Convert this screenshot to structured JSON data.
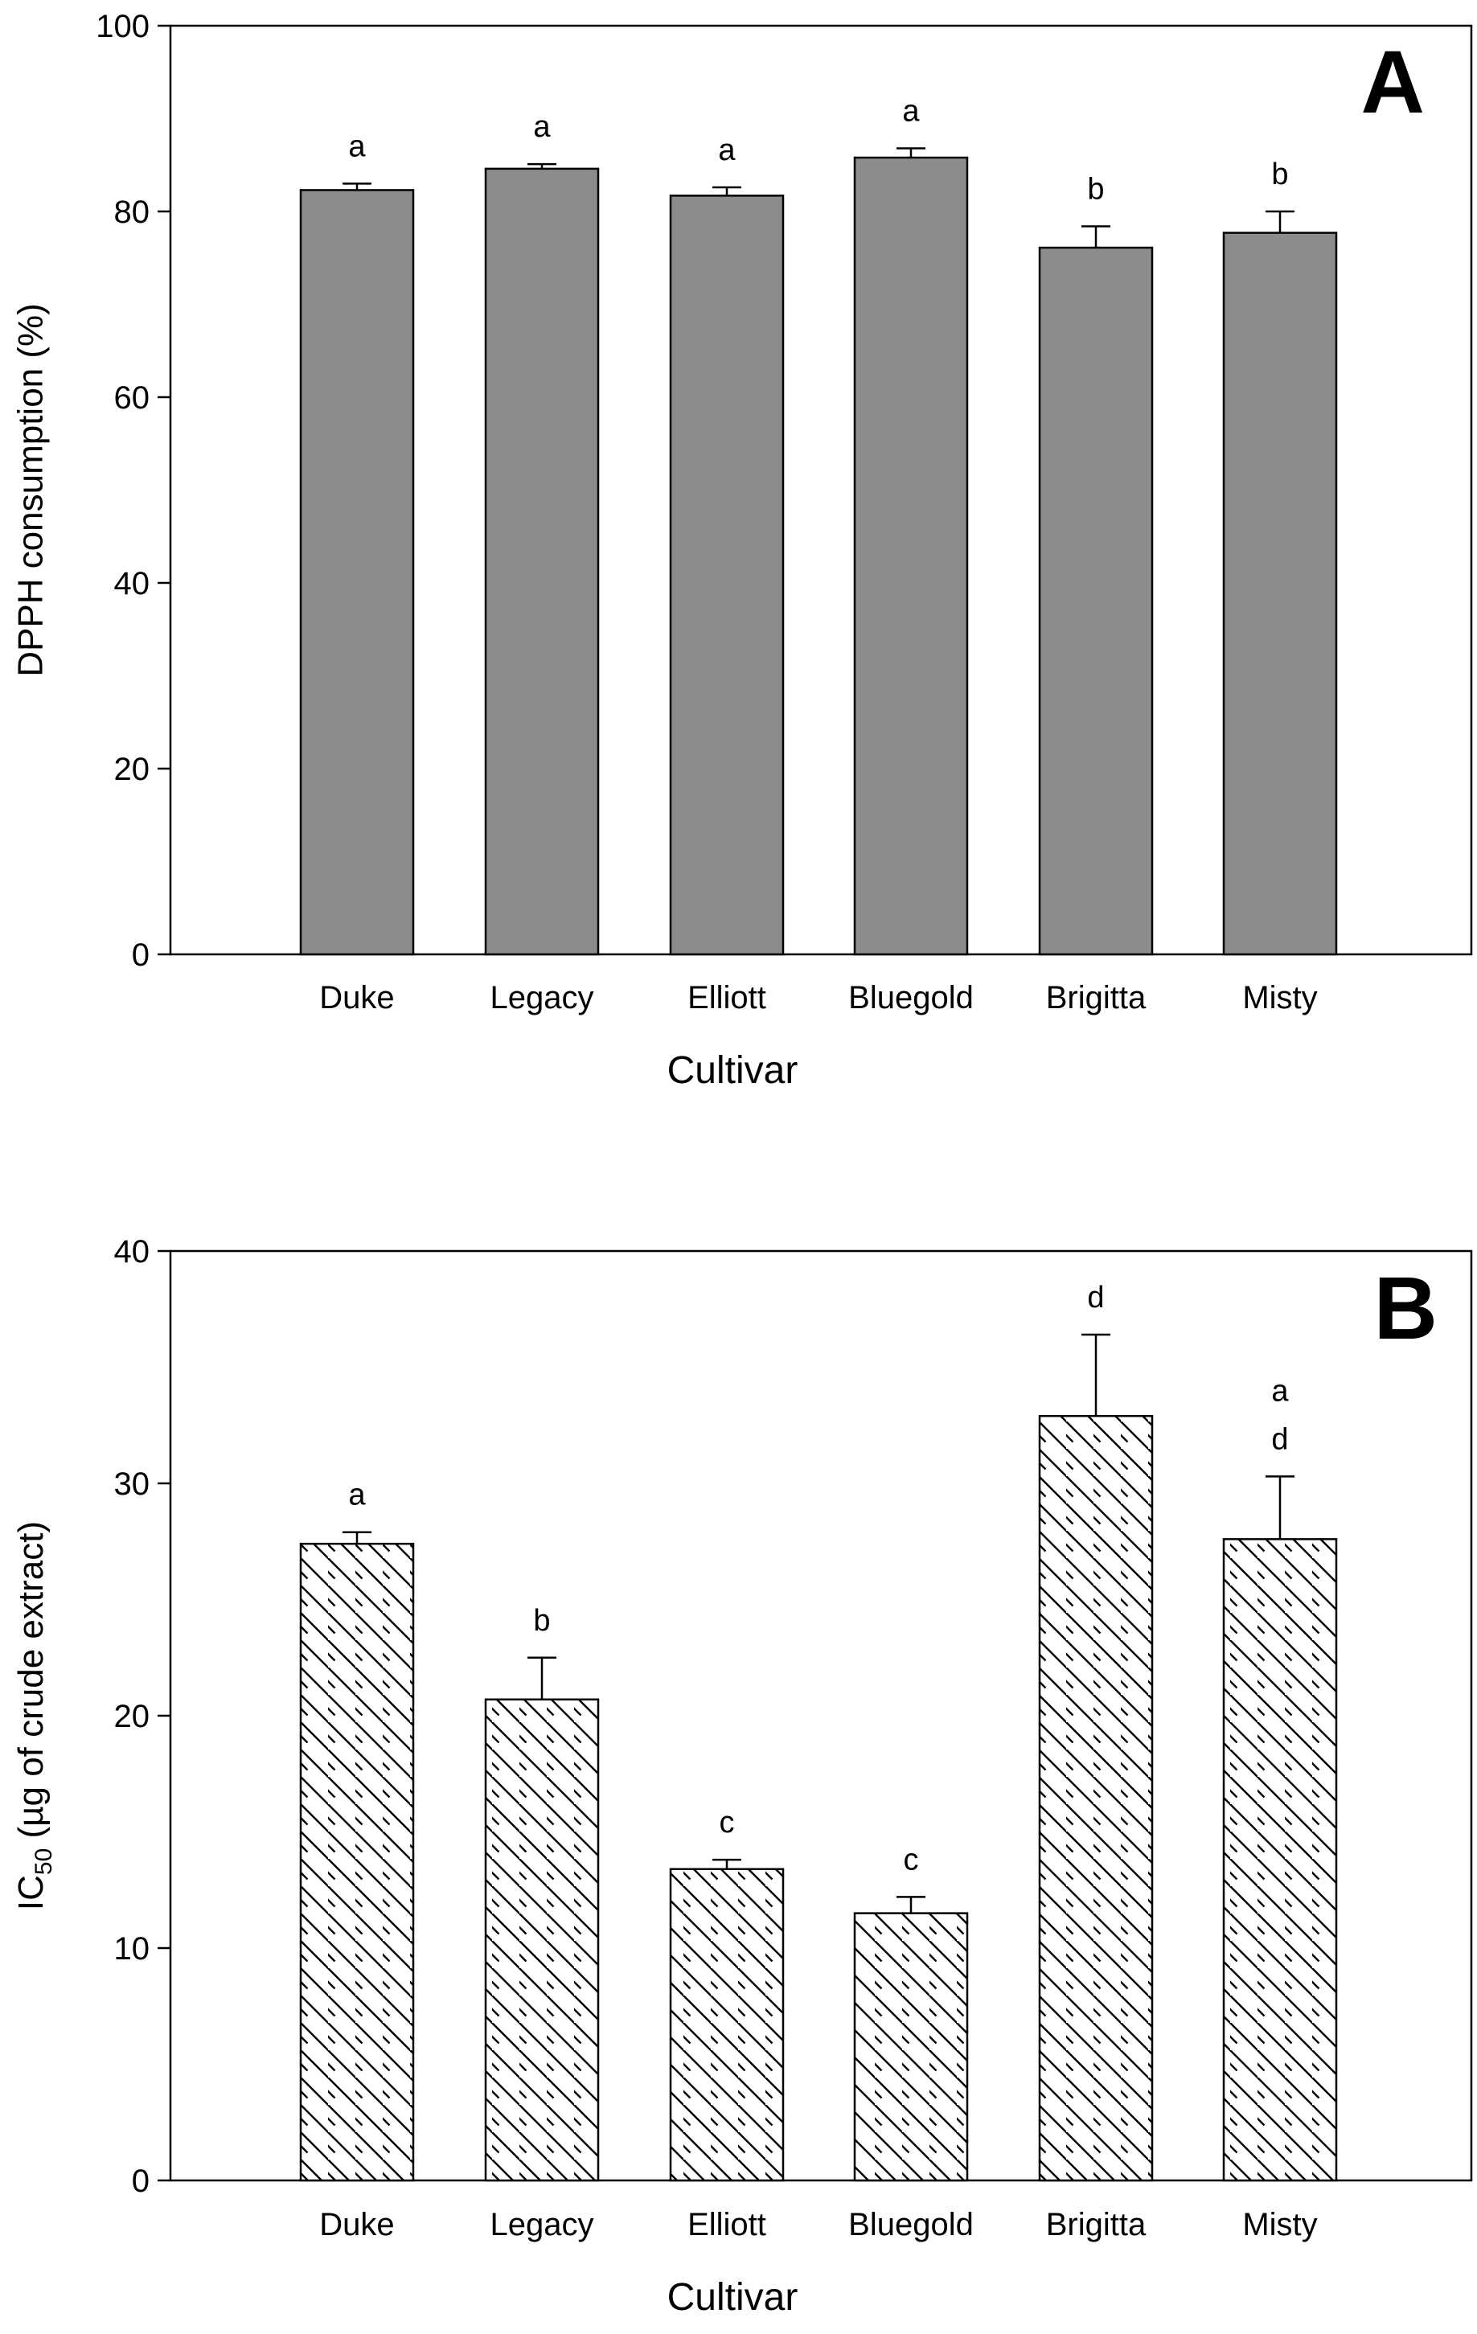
{
  "chart_data": [
    {
      "type": "bar",
      "panel": "A",
      "title": "",
      "xlabel": "Cultivar",
      "ylabel": "DPPH consumption (%)",
      "ylim": [
        0,
        100
      ],
      "yticks": [
        0,
        20,
        40,
        60,
        80,
        100
      ],
      "categories": [
        "Duke",
        "Legacy",
        "Elliott",
        "Bluegold",
        "Brigitta",
        "Misty"
      ],
      "values": [
        82.3,
        84.6,
        81.7,
        85.8,
        76.1,
        77.7
      ],
      "errors": [
        0.7,
        0.5,
        0.9,
        1.0,
        2.3,
        2.3
      ],
      "significance": [
        [
          "a"
        ],
        [
          "a"
        ],
        [
          "a"
        ],
        [
          "a"
        ],
        [
          "b"
        ],
        [
          "b"
        ]
      ],
      "fill": "gray",
      "bar_color": "#8c8c8c"
    },
    {
      "type": "bar",
      "panel": "B",
      "title": "",
      "xlabel": "Cultivar",
      "ylabel_main": "IC",
      "ylabel_sub": "50",
      "ylabel_rest": " (µg of crude extract)",
      "ylim": [
        0,
        40
      ],
      "yticks": [
        0,
        10,
        20,
        30,
        40
      ],
      "categories": [
        "Duke",
        "Legacy",
        "Elliott",
        "Bluegold",
        "Brigitta",
        "Misty"
      ],
      "values": [
        27.4,
        20.7,
        13.4,
        11.5,
        32.9,
        27.6
      ],
      "errors": [
        0.5,
        1.8,
        0.4,
        0.7,
        3.5,
        2.7
      ],
      "significance": [
        [
          "a"
        ],
        [
          "b"
        ],
        [
          "c"
        ],
        [
          "c"
        ],
        [
          "d"
        ],
        [
          "d",
          "a"
        ]
      ],
      "fill": "hatched",
      "bar_color": "#ffffff"
    }
  ]
}
